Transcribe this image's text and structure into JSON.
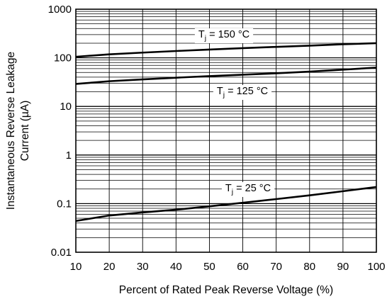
{
  "chart_data": {
    "type": "line",
    "title": "",
    "xlabel": "Percent of Rated Peak Reverse Voltage (%)",
    "ylabel_line1": "Instantaneous Reverse Leakage",
    "ylabel_line2": "Current (µA)",
    "x_scale": "linear",
    "y_scale": "log",
    "xlim": [
      10,
      100
    ],
    "ylim": [
      0.01,
      1000
    ],
    "grid": true,
    "x_ticks": [
      10,
      20,
      30,
      40,
      50,
      60,
      70,
      80,
      90,
      100
    ],
    "x_tick_labels": [
      "10",
      "20",
      "30",
      "40",
      "50",
      "60",
      "70",
      "80",
      "90",
      "100"
    ],
    "y_ticks": [
      0.01,
      0.1,
      1,
      10,
      100,
      1000
    ],
    "y_tick_labels": [
      "0.01",
      "0.1",
      "1",
      "10",
      "100",
      "1000"
    ],
    "series": [
      {
        "name": "Tj = 150 °C",
        "label_main": "T",
        "label_sub": "j",
        "label_rest": " = 150 °C",
        "x": [
          10,
          20,
          30,
          40,
          50,
          60,
          70,
          80,
          90,
          100
        ],
        "values": [
          105,
          118,
          128,
          138,
          148,
          158,
          168,
          178,
          190,
          200
        ]
      },
      {
        "name": "Tj = 125 °C",
        "label_main": "T",
        "label_sub": "j",
        "label_rest": " = 125 °C",
        "x": [
          10,
          20,
          30,
          40,
          50,
          60,
          70,
          80,
          90,
          100
        ],
        "values": [
          29,
          33,
          36,
          39,
          42,
          45,
          48,
          52,
          57,
          63
        ]
      },
      {
        "name": "Tj = 25 °C",
        "label_main": "T",
        "label_sub": "j",
        "label_rest": " = 25 °C",
        "x": [
          10,
          20,
          30,
          40,
          50,
          60,
          70,
          80,
          90,
          100
        ],
        "values": [
          0.044,
          0.057,
          0.066,
          0.075,
          0.088,
          0.104,
          0.124,
          0.148,
          0.18,
          0.22
        ]
      }
    ]
  },
  "colors": {
    "background": "#ffffff",
    "line": "#000000",
    "grid": "#000000"
  }
}
